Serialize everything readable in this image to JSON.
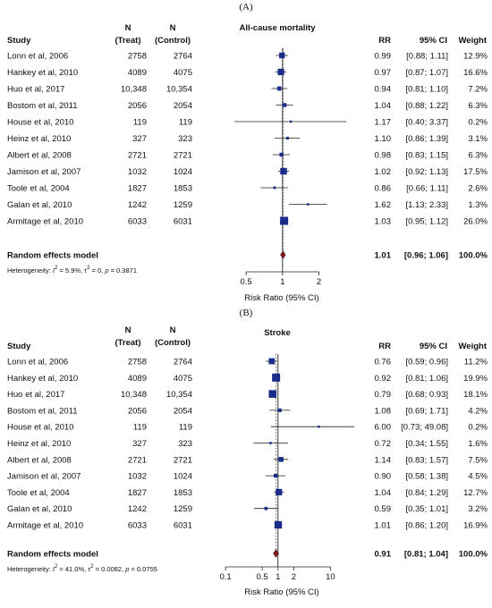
{
  "chart_data": [
    {
      "type": "forest",
      "panel_label": "(A)",
      "title": "All-cause mortality",
      "headers": {
        "study": "Study",
        "n_treat": [
          "N",
          "(Treat)"
        ],
        "n_control": [
          "N",
          "(Control)"
        ],
        "rr": "RR",
        "ci": "95% CI",
        "weight": "Weight"
      },
      "xlabel": "Risk Ratio (95% CI)",
      "scale": "log",
      "xlim": [
        0.4,
        2.6
      ],
      "ticks": [
        {
          "value": 0.5,
          "label": "0.5"
        },
        {
          "value": 1,
          "label": "1"
        },
        {
          "value": 2,
          "label": "2"
        }
      ],
      "studies": [
        {
          "name": "Lonn et al, 2006",
          "n_treat": "2758",
          "n_control": "2764",
          "rr": 0.99,
          "lo": 0.88,
          "hi": 1.11,
          "rr_text": "0.99",
          "ci_text": "[0.88; 1.11]",
          "weight_text": "12.9%",
          "weight": 12.9
        },
        {
          "name": "Hankey et al, 2010",
          "n_treat": "4089",
          "n_control": "4075",
          "rr": 0.97,
          "lo": 0.87,
          "hi": 1.07,
          "rr_text": "0.97",
          "ci_text": "[0.87; 1.07]",
          "weight_text": "16.6%",
          "weight": 16.6
        },
        {
          "name": "Huo et al, 2017",
          "n_treat": "10,348",
          "n_control": "10,354",
          "rr": 0.94,
          "lo": 0.81,
          "hi": 1.1,
          "rr_text": "0.94",
          "ci_text": "[0.81; 1.10]",
          "weight_text": "7.2%",
          "weight": 7.2
        },
        {
          "name": "Bostom et al, 2011",
          "n_treat": "2056",
          "n_control": "2054",
          "rr": 1.04,
          "lo": 0.88,
          "hi": 1.22,
          "rr_text": "1.04",
          "ci_text": "[0.88; 1.22]",
          "weight_text": "6.3%",
          "weight": 6.3
        },
        {
          "name": "House et al, 2010",
          "n_treat": "119",
          "n_control": "119",
          "rr": 1.17,
          "lo": 0.4,
          "hi": 3.37,
          "rr_text": "1.17",
          "ci_text": "[0.40; 3.37]",
          "weight_text": "0.2%",
          "weight": 0.2
        },
        {
          "name": "Heinz et al, 2010",
          "n_treat": "327",
          "n_control": "323",
          "rr": 1.1,
          "lo": 0.86,
          "hi": 1.39,
          "rr_text": "1.10",
          "ci_text": "[0.86; 1.39]",
          "weight_text": "3.1%",
          "weight": 3.1
        },
        {
          "name": "Albert et al, 2008",
          "n_treat": "2721",
          "n_control": "2721",
          "rr": 0.98,
          "lo": 0.83,
          "hi": 1.15,
          "rr_text": "0.98",
          "ci_text": "[0.83; 1.15]",
          "weight_text": "6.3%",
          "weight": 6.3
        },
        {
          "name": "Jamison et al, 2007",
          "n_treat": "1032",
          "n_control": "1024",
          "rr": 1.02,
          "lo": 0.92,
          "hi": 1.13,
          "rr_text": "1.02",
          "ci_text": "[0.92; 1.13]",
          "weight_text": "17.5%",
          "weight": 17.5
        },
        {
          "name": "Toole et al, 2004",
          "n_treat": "1827",
          "n_control": "1853",
          "rr": 0.86,
          "lo": 0.66,
          "hi": 1.11,
          "rr_text": "0.86",
          "ci_text": "[0.66; 1.11]",
          "weight_text": "2.6%",
          "weight": 2.6
        },
        {
          "name": "Galan et al, 2010",
          "n_treat": "1242",
          "n_control": "1259",
          "rr": 1.62,
          "lo": 1.13,
          "hi": 2.33,
          "rr_text": "1.62",
          "ci_text": "[1.13; 2.33]",
          "weight_text": "1.3%",
          "weight": 1.3
        },
        {
          "name": "Armitage et al, 2010",
          "n_treat": "6033",
          "n_control": "6031",
          "rr": 1.03,
          "lo": 0.95,
          "hi": 1.12,
          "rr_text": "1.03",
          "ci_text": "[0.95; 1.12]",
          "weight_text": "26.0%",
          "weight": 26.0
        }
      ],
      "summary": {
        "label": "Random effects model",
        "rr": 1.01,
        "lo": 0.96,
        "hi": 1.06,
        "rr_text": "1.01",
        "ci_text": "[0.96; 1.06]",
        "weight_text": "100.0%"
      },
      "heterogeneity": {
        "prefix": "Heterogeneity: ",
        "i2_sym": "I",
        "i2_val": " = 5.9%, ",
        "tau_sym": "τ",
        "tau_val": " = 0, ",
        "p_sym": "p",
        "p_val": " = 0.3871"
      },
      "colors": {
        "box": "#1a2d8a",
        "diamond": "#8b1a1a"
      }
    },
    {
      "type": "forest",
      "panel_label": "(B)",
      "title": "Stroke",
      "headers": {
        "study": "Study",
        "n_treat": [
          "N",
          "(Treat)"
        ],
        "n_control": [
          "N",
          "(Control)"
        ],
        "rr": "RR",
        "ci": "95% CI",
        "weight": "Weight"
      },
      "xlabel": "Risk Ratio (95% CI)",
      "scale": "log",
      "xlim": [
        0.07,
        14
      ],
      "ticks": [
        {
          "value": 0.1,
          "label": "0.1"
        },
        {
          "value": 0.5,
          "label": "0.5"
        },
        {
          "value": 1,
          "label": "1"
        },
        {
          "value": 2,
          "label": "2"
        },
        {
          "value": 10,
          "label": "10"
        }
      ],
      "studies": [
        {
          "name": "Lonn et al, 2006",
          "n_treat": "2758",
          "n_control": "2764",
          "rr": 0.76,
          "lo": 0.59,
          "hi": 0.96,
          "rr_text": "0.76",
          "ci_text": "[0.59; 0.96]",
          "weight_text": "11.2%",
          "weight": 11.2
        },
        {
          "name": "Hankey et al, 2010",
          "n_treat": "4089",
          "n_control": "4075",
          "rr": 0.92,
          "lo": 0.81,
          "hi": 1.06,
          "rr_text": "0.92",
          "ci_text": "[0.81; 1.06]",
          "weight_text": "19.9%",
          "weight": 19.9
        },
        {
          "name": "Huo et al, 2017",
          "n_treat": "10,348",
          "n_control": "10,354",
          "rr": 0.79,
          "lo": 0.68,
          "hi": 0.93,
          "rr_text": "0.79",
          "ci_text": "[0.68; 0.93]",
          "weight_text": "18.1%",
          "weight": 18.1
        },
        {
          "name": "Bostom et al, 2011",
          "n_treat": "2056",
          "n_control": "2054",
          "rr": 1.08,
          "lo": 0.69,
          "hi": 1.71,
          "rr_text": "1.08",
          "ci_text": "[0.69; 1.71]",
          "weight_text": "4.2%",
          "weight": 4.2
        },
        {
          "name": "House et al, 2010",
          "n_treat": "119",
          "n_control": "119",
          "rr": 6.0,
          "lo": 0.73,
          "hi": 49.08,
          "rr_text": "6.00",
          "ci_text": "[0.73; 49.08]",
          "weight_text": "0.2%",
          "weight": 0.2
        },
        {
          "name": "Heinz et al, 2010",
          "n_treat": "327",
          "n_control": "323",
          "rr": 0.72,
          "lo": 0.34,
          "hi": 1.55,
          "rr_text": "0.72",
          "ci_text": "[0.34; 1.55]",
          "weight_text": "1.6%",
          "weight": 1.6
        },
        {
          "name": "Albert et al, 2008",
          "n_treat": "2721",
          "n_control": "2721",
          "rr": 1.14,
          "lo": 0.83,
          "hi": 1.57,
          "rr_text": "1.14",
          "ci_text": "[0.83; 1.57]",
          "weight_text": "7.5%",
          "weight": 7.5
        },
        {
          "name": "Jamison et al, 2007",
          "n_treat": "1032",
          "n_control": "1024",
          "rr": 0.9,
          "lo": 0.58,
          "hi": 1.38,
          "rr_text": "0.90",
          "ci_text": "[0.58; 1.38]",
          "weight_text": "4.5%",
          "weight": 4.5
        },
        {
          "name": "Toole et al, 2004",
          "n_treat": "1827",
          "n_control": "1853",
          "rr": 1.04,
          "lo": 0.84,
          "hi": 1.29,
          "rr_text": "1.04",
          "ci_text": "[0.84; 1.29]",
          "weight_text": "12.7%",
          "weight": 12.7
        },
        {
          "name": "Galan et al, 2010",
          "n_treat": "1242",
          "n_control": "1259",
          "rr": 0.59,
          "lo": 0.35,
          "hi": 1.01,
          "rr_text": "0.59",
          "ci_text": "[0.35; 1.01]",
          "weight_text": "3.2%",
          "weight": 3.2
        },
        {
          "name": "Armitage et al, 2010",
          "n_treat": "6033",
          "n_control": "6031",
          "rr": 1.01,
          "lo": 0.86,
          "hi": 1.2,
          "rr_text": "1.01",
          "ci_text": "[0.86; 1.20]",
          "weight_text": "16.9%",
          "weight": 16.9
        }
      ],
      "summary": {
        "label": "Random effects model",
        "rr": 0.91,
        "lo": 0.81,
        "hi": 1.04,
        "rr_text": "0.91",
        "ci_text": "[0.81; 1.04]",
        "weight_text": "100.0%"
      },
      "heterogeneity": {
        "prefix": "Heterogeneity: ",
        "i2_sym": "I",
        "i2_val": " = 41.0%, ",
        "tau_sym": "τ",
        "tau_val": " = 0.0082, ",
        "p_sym": "p",
        "p_val": " = 0.0755"
      },
      "colors": {
        "box": "#1a2d8a",
        "diamond": "#8b1a1a"
      }
    }
  ]
}
